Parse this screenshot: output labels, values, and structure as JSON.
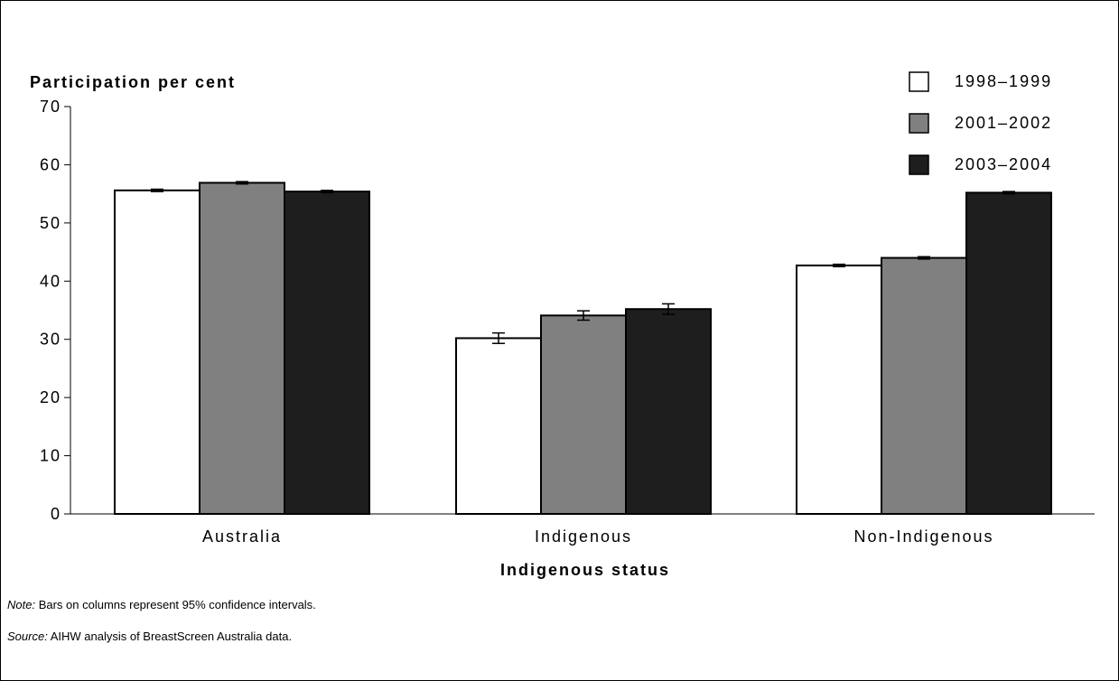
{
  "chart_data": {
    "type": "bar",
    "ylabel": "Participation per cent",
    "xlabel": "Indigenous status",
    "ylim": [
      0,
      70
    ],
    "yticks": [
      "0",
      "10",
      "20",
      "30",
      "40",
      "50",
      "60",
      "70"
    ],
    "categories": [
      "Australia",
      "Indigenous",
      "Non-Indigenous"
    ],
    "series": [
      {
        "name": "1998–1999",
        "color": "#ffffff",
        "values": [
          55.6,
          30.2,
          42.7
        ],
        "ci": [
          [
            55.4,
            55.8
          ],
          [
            29.3,
            31.1
          ],
          [
            42.5,
            42.9
          ]
        ]
      },
      {
        "name": "2001–2002",
        "color": "#808080",
        "values": [
          56.9,
          34.1,
          44.0
        ],
        "ci": [
          [
            56.7,
            57.1
          ],
          [
            33.3,
            34.9
          ],
          [
            43.8,
            44.2
          ]
        ]
      },
      {
        "name": "2003–2004",
        "color": "#1e1e1e",
        "values": [
          55.4,
          35.2,
          55.2
        ],
        "ci": [
          [
            55.2,
            55.6
          ],
          [
            34.3,
            36.1
          ],
          [
            55.0,
            55.4
          ]
        ]
      }
    ],
    "legend_position": "top-right",
    "grid": false
  },
  "notes": {
    "note_label": "Note:",
    "note_text": " Bars on columns represent 95% confidence intervals.",
    "source_label": "Source:",
    "source_text": " AIHW analysis of BreastScreen Australia data."
  }
}
